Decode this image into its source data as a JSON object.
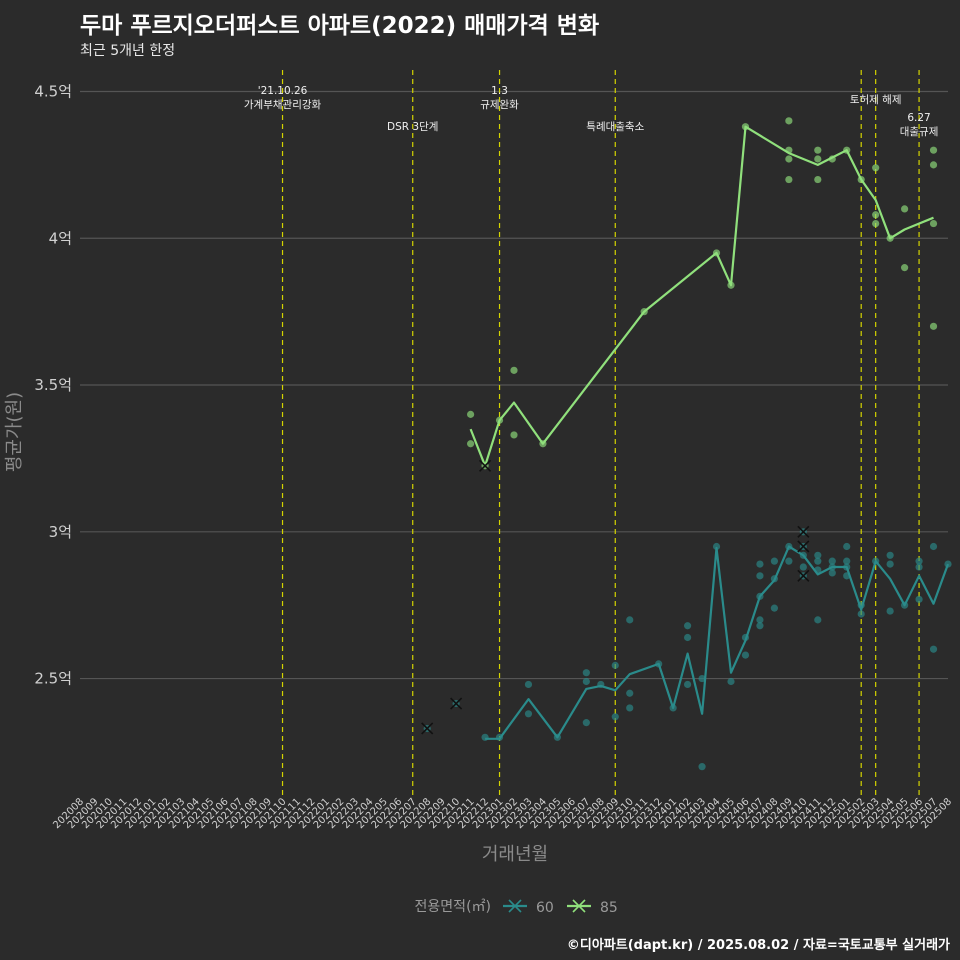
{
  "header": {
    "title": "두마 푸르지오더퍼스트 아파트(2022) 매매가격 변화",
    "subtitle": "최근 5개년 한정"
  },
  "footer": {
    "caption": "©디아파트(dapt.kr) / 2025.08.02 / 자료=국토교통부 실거래가"
  },
  "colors": {
    "background": "#2b2b2b",
    "grid": "#555555",
    "event_line": "#d4d400",
    "series_60": "#2a8b8b",
    "series_85": "#90e07c"
  },
  "chart_data": {
    "type": "line",
    "xlabel": "거래년월",
    "ylabel": "평균가(원)",
    "x_categories": [
      "202008",
      "202009",
      "202010",
      "202011",
      "202012",
      "202101",
      "202102",
      "202103",
      "202104",
      "202105",
      "202106",
      "202107",
      "202108",
      "202109",
      "202110",
      "202111",
      "202112",
      "202201",
      "202202",
      "202203",
      "202204",
      "202205",
      "202206",
      "202207",
      "202208",
      "202209",
      "202210",
      "202211",
      "202212",
      "202301",
      "202302",
      "202303",
      "202304",
      "202305",
      "202306",
      "202307",
      "202308",
      "202309",
      "202310",
      "202311",
      "202312",
      "202401",
      "202402",
      "202403",
      "202404",
      "202405",
      "202406",
      "202407",
      "202408",
      "202409",
      "202410",
      "202411",
      "202412",
      "202501",
      "202502",
      "202503",
      "202504",
      "202505",
      "202506",
      "202507",
      "202508"
    ],
    "y_ticks": [
      {
        "value": 25000,
        "label": "2.5억"
      },
      {
        "value": 30000,
        "label": "3억"
      },
      {
        "value": 35000,
        "label": "3.5억"
      },
      {
        "value": 40000,
        "label": "4억"
      },
      {
        "value": 45000,
        "label": "4.5억"
      }
    ],
    "ylim": [
      21000,
      45800
    ],
    "y_unit": "만원",
    "legend": {
      "title": "전용면적(㎡)",
      "position": "bottom"
    },
    "events": [
      {
        "x": "202110",
        "lines": [
          "'21.10.26",
          "가계부채관리강화"
        ]
      },
      {
        "x": "202207",
        "lines": [
          "DSR 3단계"
        ]
      },
      {
        "x": "202301",
        "lines": [
          "1.3",
          "규제완화"
        ]
      },
      {
        "x": "202309",
        "lines": [
          "특례대출축소"
        ]
      },
      {
        "x": "202502",
        "lines": []
      },
      {
        "x": "202503",
        "lines": [
          "토허제 해제"
        ]
      },
      {
        "x": "202506",
        "lines": [
          "6.27",
          "대출규제"
        ]
      }
    ],
    "series": [
      {
        "name": "60",
        "color": "#2a8b8b",
        "line": [
          {
            "x": "202212",
            "y": 22950
          },
          {
            "x": "202301",
            "y": 22950
          },
          {
            "x": "202303",
            "y": 24300
          },
          {
            "x": "202305",
            "y": 23000
          },
          {
            "x": "202307",
            "y": 24650
          },
          {
            "x": "202308",
            "y": 24750
          },
          {
            "x": "202309",
            "y": 24600
          },
          {
            "x": "202310",
            "y": 25150
          },
          {
            "x": "202312",
            "y": 25500
          },
          {
            "x": "202401",
            "y": 24000
          },
          {
            "x": "202402",
            "y": 25850
          },
          {
            "x": "202403",
            "y": 23800
          },
          {
            "x": "202404",
            "y": 29450
          },
          {
            "x": "202405",
            "y": 25200
          },
          {
            "x": "202406",
            "y": 26300
          },
          {
            "x": "202407",
            "y": 27800
          },
          {
            "x": "202408",
            "y": 28350
          },
          {
            "x": "202409",
            "y": 29500
          },
          {
            "x": "202410",
            "y": 29200
          },
          {
            "x": "202411",
            "y": 28550
          },
          {
            "x": "202412",
            "y": 28800
          },
          {
            "x": "202501",
            "y": 28800
          },
          {
            "x": "202502",
            "y": 27350
          },
          {
            "x": "202503",
            "y": 29000
          },
          {
            "x": "202504",
            "y": 28400
          },
          {
            "x": "202505",
            "y": 27500
          },
          {
            "x": "202506",
            "y": 28500
          },
          {
            "x": "202507",
            "y": 27550
          },
          {
            "x": "202508",
            "y": 28900
          }
        ],
        "points": [
          {
            "x": "202301",
            "y": 23000
          },
          {
            "x": "202212",
            "y": 23000
          },
          {
            "x": "202303",
            "y": 24800
          },
          {
            "x": "202303",
            "y": 23800
          },
          {
            "x": "202305",
            "y": 23000
          },
          {
            "x": "202307",
            "y": 25200
          },
          {
            "x": "202307",
            "y": 24900
          },
          {
            "x": "202307",
            "y": 23500
          },
          {
            "x": "202308",
            "y": 24800
          },
          {
            "x": "202309",
            "y": 25450
          },
          {
            "x": "202309",
            "y": 23700
          },
          {
            "x": "202310",
            "y": 27000
          },
          {
            "x": "202310",
            "y": 24500
          },
          {
            "x": "202310",
            "y": 24000
          },
          {
            "x": "202312",
            "y": 25500
          },
          {
            "x": "202401",
            "y": 24000
          },
          {
            "x": "202402",
            "y": 26800
          },
          {
            "x": "202402",
            "y": 26400
          },
          {
            "x": "202402",
            "y": 24800
          },
          {
            "x": "202403",
            "y": 25000
          },
          {
            "x": "202403",
            "y": 22000
          },
          {
            "x": "202404",
            "y": 29500
          },
          {
            "x": "202405",
            "y": 24900
          },
          {
            "x": "202406",
            "y": 26400
          },
          {
            "x": "202406",
            "y": 25800
          },
          {
            "x": "202407",
            "y": 28900
          },
          {
            "x": "202407",
            "y": 28500
          },
          {
            "x": "202407",
            "y": 27800
          },
          {
            "x": "202407",
            "y": 27000
          },
          {
            "x": "202407",
            "y": 26800
          },
          {
            "x": "202408",
            "y": 29000
          },
          {
            "x": "202408",
            "y": 28400
          },
          {
            "x": "202408",
            "y": 27400
          },
          {
            "x": "202409",
            "y": 29500
          },
          {
            "x": "202409",
            "y": 29000
          },
          {
            "x": "202410",
            "y": 29200
          },
          {
            "x": "202410",
            "y": 28800
          },
          {
            "x": "202411",
            "y": 29200
          },
          {
            "x": "202411",
            "y": 29000
          },
          {
            "x": "202411",
            "y": 28700
          },
          {
            "x": "202411",
            "y": 27000
          },
          {
            "x": "202412",
            "y": 29000
          },
          {
            "x": "202412",
            "y": 28800
          },
          {
            "x": "202412",
            "y": 28600
          },
          {
            "x": "202501",
            "y": 29500
          },
          {
            "x": "202501",
            "y": 29000
          },
          {
            "x": "202501",
            "y": 28800
          },
          {
            "x": "202501",
            "y": 28500
          },
          {
            "x": "202502",
            "y": 27500
          },
          {
            "x": "202502",
            "y": 27200
          },
          {
            "x": "202503",
            "y": 29000
          },
          {
            "x": "202504",
            "y": 29200
          },
          {
            "x": "202504",
            "y": 28900
          },
          {
            "x": "202504",
            "y": 27300
          },
          {
            "x": "202505",
            "y": 27500
          },
          {
            "x": "202506",
            "y": 29000
          },
          {
            "x": "202506",
            "y": 28800
          },
          {
            "x": "202506",
            "y": 27700
          },
          {
            "x": "202507",
            "y": 29500
          },
          {
            "x": "202507",
            "y": 26000
          },
          {
            "x": "202508",
            "y": 28900
          }
        ],
        "cancelled": [
          {
            "x": "202208",
            "y": 23300
          },
          {
            "x": "202210",
            "y": 24150
          },
          {
            "x": "202410",
            "y": 30000
          },
          {
            "x": "202410",
            "y": 29500
          },
          {
            "x": "202410",
            "y": 28500
          }
        ]
      },
      {
        "name": "85",
        "color": "#90e07c",
        "line": [
          {
            "x": "202211",
            "y": 33500
          },
          {
            "x": "202212",
            "y": 32250
          },
          {
            "x": "202301",
            "y": 33800
          },
          {
            "x": "202302",
            "y": 34400
          },
          {
            "x": "202304",
            "y": 33000
          },
          {
            "x": "202311",
            "y": 37500
          },
          {
            "x": "202404",
            "y": 39500
          },
          {
            "x": "202405",
            "y": 38400
          },
          {
            "x": "202406",
            "y": 43800
          },
          {
            "x": "202409",
            "y": 42900
          },
          {
            "x": "202411",
            "y": 42500
          },
          {
            "x": "202412",
            "y": 42750
          },
          {
            "x": "202501",
            "y": 43000
          },
          {
            "x": "202502",
            "y": 42000
          },
          {
            "x": "202503",
            "y": 41300
          },
          {
            "x": "202504",
            "y": 40000
          },
          {
            "x": "202505",
            "y": 40300
          },
          {
            "x": "202507",
            "y": 40700
          }
        ],
        "points": [
          {
            "x": "202211",
            "y": 34000
          },
          {
            "x": "202211",
            "y": 33000
          },
          {
            "x": "202301",
            "y": 33800
          },
          {
            "x": "202302",
            "y": 35500
          },
          {
            "x": "202302",
            "y": 33300
          },
          {
            "x": "202304",
            "y": 33000
          },
          {
            "x": "202311",
            "y": 37500
          },
          {
            "x": "202404",
            "y": 39500
          },
          {
            "x": "202405",
            "y": 38400
          },
          {
            "x": "202406",
            "y": 43800
          },
          {
            "x": "202409",
            "y": 44000
          },
          {
            "x": "202409",
            "y": 43000
          },
          {
            "x": "202409",
            "y": 42700
          },
          {
            "x": "202409",
            "y": 42000
          },
          {
            "x": "202411",
            "y": 43000
          },
          {
            "x": "202411",
            "y": 42700
          },
          {
            "x": "202411",
            "y": 42000
          },
          {
            "x": "202412",
            "y": 42700
          },
          {
            "x": "202501",
            "y": 43000
          },
          {
            "x": "202502",
            "y": 42000
          },
          {
            "x": "202503",
            "y": 42400
          },
          {
            "x": "202503",
            "y": 40800
          },
          {
            "x": "202503",
            "y": 40500
          },
          {
            "x": "202504",
            "y": 40000
          },
          {
            "x": "202505",
            "y": 41000
          },
          {
            "x": "202505",
            "y": 39000
          },
          {
            "x": "202507",
            "y": 43000
          },
          {
            "x": "202507",
            "y": 42500
          },
          {
            "x": "202507",
            "y": 40500
          },
          {
            "x": "202507",
            "y": 37000
          }
        ],
        "cancelled": [
          {
            "x": "202212",
            "y": 32250
          }
        ]
      }
    ]
  }
}
